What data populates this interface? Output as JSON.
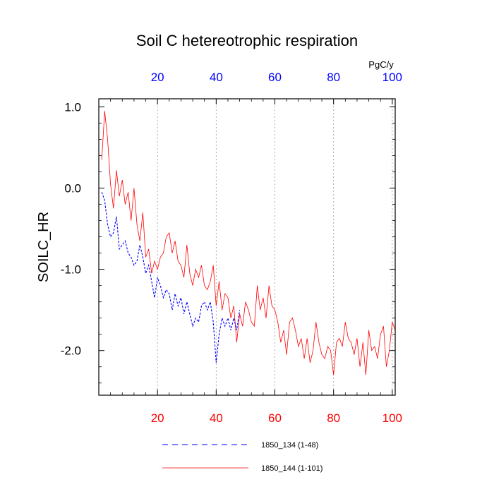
{
  "chart_data": {
    "type": "line",
    "title": "Soil C hetereotrophic respiration",
    "ylabel": "SOILC_HR",
    "units": "PgC/y",
    "xlim": [
      0,
      101
    ],
    "ylim": [
      -2.55,
      1.1
    ],
    "bottom_ticks": [
      "20",
      "40",
      "60",
      "80",
      "100"
    ],
    "top_ticks": [
      "20",
      "40",
      "60",
      "80",
      "100"
    ],
    "y_ticks": [
      "1.0",
      "0.0",
      "-1.0",
      "-2.0"
    ],
    "colors": {
      "series_red": "#ff0000",
      "series_blue": "#0000ff",
      "top_ticks": "#0000ff",
      "bottom_ticks": "#ff0000"
    },
    "series": [
      {
        "name": "1850_144 (1-101)",
        "style": "solid",
        "color": "#ff0000",
        "x_start": 1,
        "values": [
          0.35,
          0.95,
          0.6,
          0.05,
          -0.25,
          0.22,
          -0.1,
          0.1,
          -0.2,
          -0.05,
          -0.4,
          0.0,
          -0.45,
          -0.65,
          -0.3,
          -0.85,
          -0.75,
          -1.05,
          -0.9,
          -1.0,
          -0.85,
          -0.8,
          -0.6,
          -0.55,
          -0.8,
          -0.65,
          -0.9,
          -0.95,
          -1.1,
          -0.7,
          -1.05,
          -1.2,
          -1.0,
          -1.1,
          -0.95,
          -1.2,
          -1.25,
          -1.15,
          -0.95,
          -1.45,
          -1.15,
          -1.5,
          -1.3,
          -1.35,
          -1.6,
          -1.45,
          -1.9,
          -1.55,
          -1.7,
          -1.4,
          -1.5,
          -1.65,
          -1.7,
          -1.2,
          -1.5,
          -1.35,
          -1.6,
          -1.2,
          -1.45,
          -1.5,
          -1.65,
          -1.9,
          -1.75,
          -2.05,
          -1.65,
          -1.6,
          -1.75,
          -1.95,
          -1.85,
          -2.1,
          -1.85,
          -2.15,
          -2.0,
          -1.65,
          -1.9,
          -2.05,
          -2.1,
          -1.95,
          -2.0,
          -2.3,
          -1.9,
          -1.85,
          -1.95,
          -1.65,
          -1.85,
          -1.9,
          -2.05,
          -1.85,
          -2.2,
          -1.9,
          -2.3,
          -1.75,
          -2.0,
          -1.95,
          -2.1,
          -1.8,
          -1.7,
          -2.2,
          -2.0,
          -1.65,
          -1.75
        ]
      },
      {
        "name": "1850_134 (1-48)",
        "style": "dashed",
        "color": "#0000ff",
        "x_start": 1,
        "values": [
          -0.05,
          -0.15,
          -0.45,
          -0.6,
          -0.55,
          -0.35,
          -0.75,
          -0.7,
          -0.65,
          -0.8,
          -0.85,
          -0.95,
          -0.9,
          -0.7,
          -0.85,
          -1.05,
          -0.95,
          -1.15,
          -1.35,
          -1.1,
          -1.2,
          -1.35,
          -1.25,
          -1.3,
          -1.5,
          -1.3,
          -1.45,
          -1.35,
          -1.55,
          -1.4,
          -1.55,
          -1.7,
          -1.6,
          -1.65,
          -1.45,
          -1.4,
          -1.5,
          -1.4,
          -1.65,
          -2.15,
          -1.8,
          -1.6,
          -1.7,
          -1.6,
          -1.75,
          -1.6,
          -1.75,
          -1.5
        ]
      }
    ]
  }
}
